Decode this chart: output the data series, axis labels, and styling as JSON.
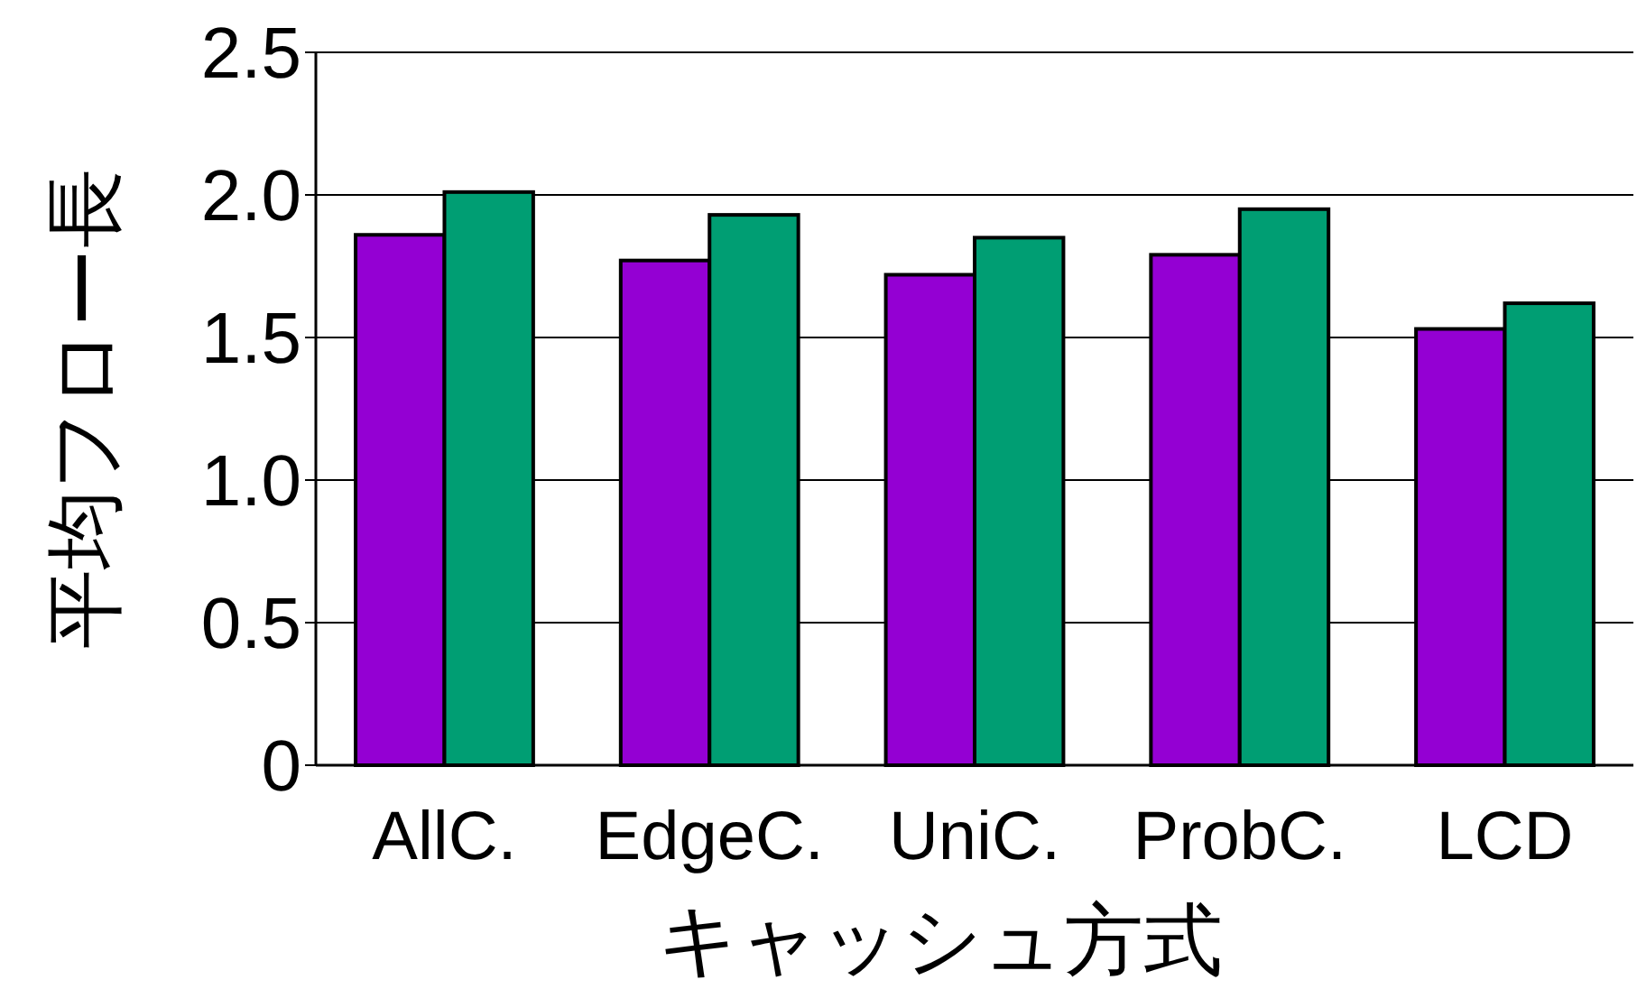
{
  "chart_data": {
    "type": "bar",
    "xlabel": "キャッシュ方式",
    "ylabel": "平均フロー長",
    "categories": [
      "AllC.",
      "EdgeC.",
      "UniC.",
      "ProbC.",
      "LCD"
    ],
    "series": [
      {
        "color": "#9400d3",
        "values": [
          1.86,
          1.77,
          1.72,
          1.79,
          1.53
        ]
      },
      {
        "color": "#009e73",
        "values": [
          2.01,
          1.93,
          1.85,
          1.95,
          1.62
        ]
      }
    ],
    "ylim": [
      0,
      2.5
    ],
    "yticks": [
      0,
      0.5,
      {
        "value": 1,
        "label": "1.0"
      },
      1.5,
      {
        "value": 2,
        "label": "2.0"
      },
      2.5
    ],
    "grid": "y"
  }
}
